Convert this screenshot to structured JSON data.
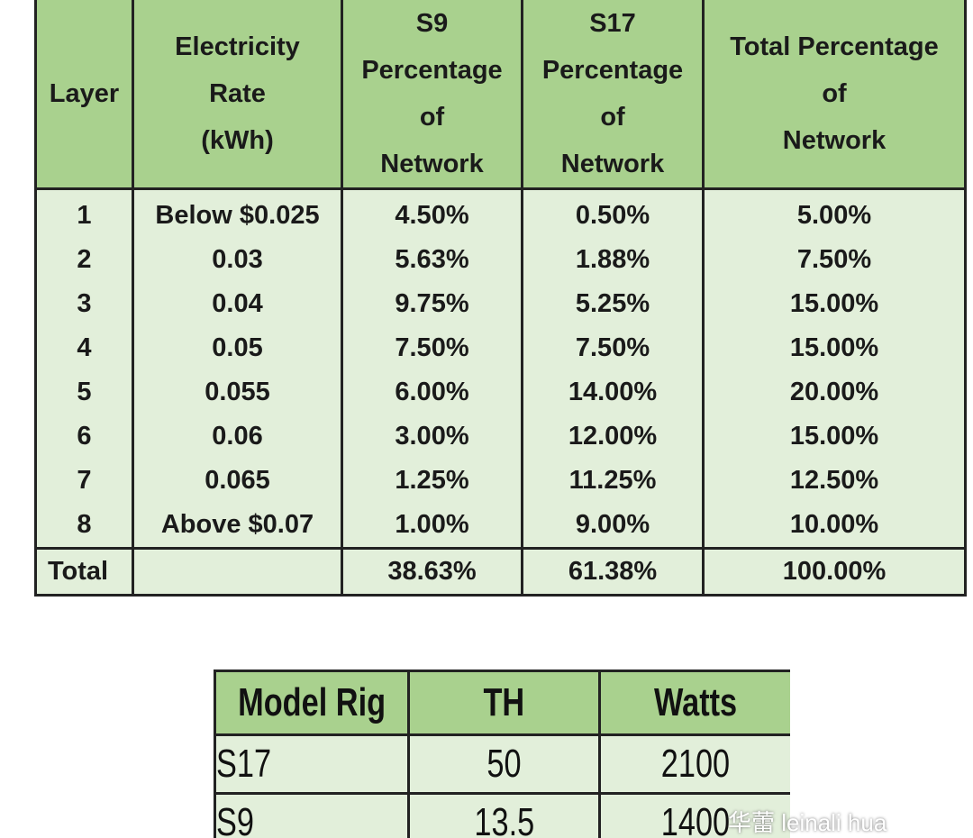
{
  "table1": {
    "header": [
      "Layer",
      "Electricity\nRate\n(kWh)",
      "S9\nPercentage\nof\nNetwork",
      "S17\nPercentage\nof\nNetwork",
      "Total Percentage\nof\nNetwork"
    ],
    "rows": [
      [
        "1",
        "Below $0.025",
        "4.50%",
        "0.50%",
        "5.00%"
      ],
      [
        "2",
        "0.03",
        "5.63%",
        "1.88%",
        "7.50%"
      ],
      [
        "3",
        "0.04",
        "9.75%",
        "5.25%",
        "15.00%"
      ],
      [
        "4",
        "0.05",
        "7.50%",
        "7.50%",
        "15.00%"
      ],
      [
        "5",
        "0.055",
        "6.00%",
        "14.00%",
        "20.00%"
      ],
      [
        "6",
        "0.06",
        "3.00%",
        "12.00%",
        "15.00%"
      ],
      [
        "7",
        "0.065",
        "1.25%",
        "11.25%",
        "12.50%"
      ],
      [
        "8",
        "Above $0.07",
        "1.00%",
        "9.00%",
        "10.00%"
      ]
    ],
    "total": [
      "Total",
      null,
      "38.63%",
      "61.38%",
      "100.00%"
    ]
  },
  "table2": {
    "header": [
      "Model Rig",
      "TH",
      "Watts"
    ],
    "rows": [
      [
        "S17",
        "50",
        "2100"
      ],
      [
        "S9",
        "13.5",
        "1400"
      ]
    ]
  },
  "watermark": "华蕾 leinali hua"
}
